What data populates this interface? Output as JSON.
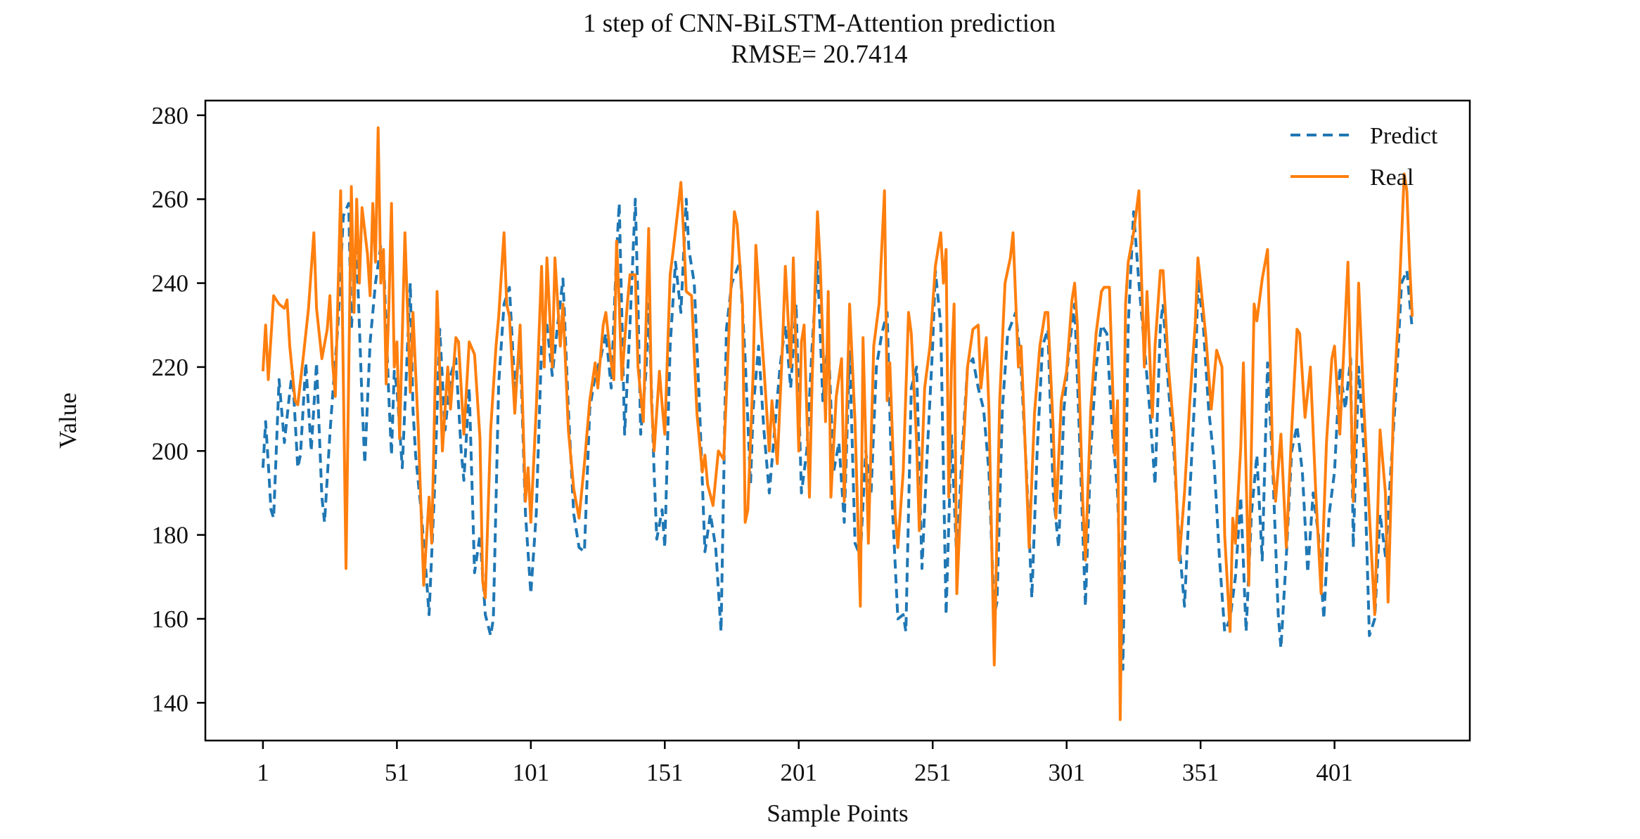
{
  "chart_data": {
    "type": "line",
    "title": "1 step of CNN-BiLSTM-Attention prediction",
    "subtitle": "RMSE= 20.7414",
    "xlabel": "Sample Points",
    "ylabel": "Value",
    "xlim": [
      -20.5,
      451.5
    ],
    "ylim": [
      131,
      283.5
    ],
    "xticks": [
      1,
      51,
      101,
      151,
      201,
      251,
      301,
      351,
      401
    ],
    "yticks": [
      140,
      160,
      180,
      200,
      220,
      240,
      260,
      280
    ],
    "grid": false,
    "legend_position": "upper right",
    "background_color": "#ffffff",
    "axes_color": "#000000",
    "series": [
      {
        "name": "Predict",
        "color": "#1f77b4",
        "style": "dashed",
        "x": [
          1,
          2,
          3,
          4,
          5,
          7,
          9,
          11,
          12,
          14,
          15,
          17,
          19,
          21,
          23,
          24,
          26,
          27,
          29,
          31,
          33,
          34,
          36,
          38,
          39,
          41,
          43,
          45,
          46,
          48,
          49,
          50,
          51,
          53,
          56,
          57,
          58,
          60,
          62,
          63,
          65,
          67,
          69,
          71,
          73,
          75,
          76,
          78,
          80,
          82,
          84,
          86,
          87,
          89,
          91,
          93,
          95,
          97,
          99,
          101,
          103,
          105,
          107,
          109,
          111,
          113,
          115,
          117,
          119,
          121,
          123,
          125,
          127,
          129,
          131,
          133,
          134,
          136,
          138,
          140,
          141,
          142,
          144,
          145,
          147,
          148,
          150,
          151,
          153,
          155,
          157,
          159,
          160,
          162,
          164,
          166,
          168,
          170,
          172,
          174,
          176,
          179,
          181,
          183,
          184,
          186,
          188,
          190,
          192,
          194,
          196,
          198,
          200,
          202,
          204,
          206,
          208,
          210,
          212,
          214,
          216,
          218,
          220,
          222,
          224,
          226,
          228,
          230,
          232,
          234,
          236,
          238,
          240,
          241,
          243,
          245,
          247,
          249,
          251,
          252,
          254,
          256,
          258,
          260,
          262,
          264,
          266,
          268,
          270,
          272,
          274,
          275,
          277,
          279,
          282,
          284,
          286,
          288,
          290,
          292,
          294,
          296,
          298,
          300,
          302,
          304,
          306,
          308,
          310,
          312,
          314,
          316,
          318,
          320,
          322,
          324,
          326,
          328,
          330,
          332,
          334,
          336,
          337,
          339,
          341,
          343,
          345,
          347,
          349,
          350,
          352,
          354,
          356,
          358,
          360,
          362,
          364,
          366,
          368,
          370,
          372,
          374,
          376,
          378,
          380,
          381,
          383,
          385,
          387,
          389,
          391,
          393,
          395,
          397,
          399,
          401,
          403,
          405,
          407,
          408,
          410,
          412,
          414,
          416,
          418,
          420,
          422,
          424,
          426,
          428,
          430
        ],
        "y": [
          196,
          207,
          197,
          186,
          184,
          217,
          202,
          214,
          219,
          196,
          199,
          221,
          200,
          221,
          189,
          183,
          204,
          213,
          230,
          256,
          259,
          229,
          248,
          212,
          197,
          226,
          240,
          249,
          246,
          213,
          199,
          219,
          215,
          196,
          240,
          210,
          199,
          186,
          170,
          161,
          190,
          229,
          205,
          218,
          222,
          200,
          193,
          215,
          171,
          180,
          161,
          156,
          160,
          216,
          235,
          239,
          215,
          225,
          185,
          166,
          185,
          225,
          230,
          218,
          230,
          241,
          210,
          185,
          177,
          176,
          210,
          218,
          222,
          228,
          215,
          247,
          259,
          204,
          230,
          260,
          235,
          204,
          219,
          235,
          195,
          179,
          186,
          177,
          225,
          245,
          233,
          260,
          248,
          240,
          210,
          176,
          185,
          177,
          157,
          229,
          240,
          245,
          222,
          192,
          210,
          225,
          205,
          190,
          205,
          220,
          230,
          215,
          235,
          190,
          200,
          225,
          245,
          212,
          227,
          195,
          202,
          183,
          224,
          178,
          175,
          200,
          190,
          220,
          228,
          233,
          186,
          160,
          161,
          157,
          215,
          220,
          172,
          200,
          225,
          243,
          230,
          161,
          204,
          174,
          200,
          220,
          222,
          215,
          210,
          195,
          161,
          164,
          210,
          228,
          233,
          220,
          195,
          165,
          200,
          225,
          229,
          190,
          177,
          210,
          225,
          235,
          200,
          163,
          200,
          220,
          230,
          228,
          205,
          190,
          148,
          230,
          257,
          240,
          225,
          210,
          192,
          230,
          235,
          215,
          200,
          178,
          163,
          190,
          215,
          241,
          230,
          210,
          198,
          175,
          157,
          160,
          170,
          189,
          157,
          185,
          199,
          174,
          221,
          195,
          161,
          153,
          175,
          200,
          206,
          195,
          171,
          190,
          180,
          160,
          185,
          195,
          220,
          210,
          222,
          177,
          220,
          200,
          156,
          160,
          185,
          175,
          195,
          215,
          240,
          243,
          229
        ]
      },
      {
        "name": "Real",
        "color": "#ff7f0e",
        "style": "solid",
        "x": [
          1,
          2,
          3,
          5,
          7,
          9,
          10,
          11,
          13,
          14,
          16,
          18,
          20,
          21,
          23,
          25,
          26,
          27,
          28,
          30,
          32,
          34,
          35,
          36,
          37,
          38,
          40,
          41,
          42,
          43,
          44,
          45,
          46,
          47,
          48,
          49,
          50,
          51,
          52,
          54,
          56,
          57,
          59,
          61,
          63,
          64,
          66,
          68,
          70,
          71,
          73,
          74,
          76,
          78,
          80,
          82,
          83,
          84,
          86,
          88,
          89,
          91,
          92,
          93,
          95,
          97,
          99,
          100,
          101,
          103,
          105,
          106,
          107,
          109,
          110,
          112,
          113,
          115,
          117,
          119,
          121,
          123,
          125,
          126,
          128,
          129,
          131,
          132,
          133,
          134,
          135,
          137,
          138,
          140,
          141,
          143,
          145,
          146,
          147,
          149,
          150,
          151,
          153,
          154,
          156,
          157,
          158,
          159,
          161,
          163,
          165,
          166,
          167,
          169,
          171,
          173,
          175,
          177,
          178,
          180,
          181,
          182,
          184,
          185,
          187,
          188,
          190,
          191,
          193,
          195,
          196,
          198,
          199,
          201,
          202,
          203,
          205,
          206,
          208,
          209,
          211,
          212,
          213,
          215,
          217,
          218,
          220,
          222,
          224,
          225,
          227,
          229,
          231,
          233,
          234,
          235,
          237,
          238,
          240,
          242,
          243,
          245,
          246,
          248,
          250,
          252,
          254,
          255,
          256,
          257,
          258,
          259,
          260,
          262,
          264,
          266,
          268,
          269,
          271,
          272,
          274,
          276,
          278,
          280,
          281,
          283,
          284,
          285,
          287,
          289,
          291,
          293,
          294,
          296,
          297,
          299,
          301,
          303,
          304,
          305,
          307,
          308,
          310,
          312,
          314,
          315,
          317,
          319,
          320,
          321,
          323,
          324,
          326,
          328,
          329,
          330,
          331,
          333,
          334,
          336,
          337,
          339,
          341,
          343,
          345,
          347,
          349,
          350,
          351,
          353,
          355,
          357,
          359,
          360,
          362,
          363,
          364,
          366,
          367,
          369,
          371,
          372,
          374,
          376,
          378,
          379,
          381,
          383,
          385,
          387,
          388,
          390,
          392,
          394,
          396,
          398,
          400,
          401,
          403,
          406,
          408,
          410,
          412,
          414,
          416,
          418,
          420,
          421,
          423,
          425,
          427,
          428,
          429,
          430
        ],
        "y": [
          219,
          230,
          217,
          237,
          235,
          234,
          236,
          225,
          212,
          211,
          222,
          234,
          252,
          234,
          222,
          229,
          237,
          221,
          213,
          262,
          172,
          263,
          233,
          260,
          240,
          258,
          247,
          237,
          259,
          245,
          277,
          240,
          248,
          216,
          234,
          259,
          220,
          226,
          203,
          252,
          214,
          233,
          205,
          168,
          189,
          178,
          238,
          200,
          220,
          210,
          227,
          226,
          204,
          226,
          223,
          203,
          169,
          165,
          205,
          225,
          232,
          252,
          235,
          232,
          209,
          230,
          188,
          196,
          183,
          210,
          244,
          220,
          246,
          220,
          246,
          225,
          235,
          205,
          191,
          184,
          197,
          212,
          221,
          215,
          230,
          233,
          221,
          217,
          250,
          235,
          217,
          235,
          242,
          242,
          220,
          207,
          253,
          212,
          200,
          219,
          211,
          204,
          242,
          247,
          258,
          264,
          252,
          238,
          237,
          209,
          195,
          199,
          192,
          187,
          200,
          198,
          229,
          257,
          254,
          235,
          183,
          186,
          219,
          249,
          229,
          220,
          200,
          212,
          197,
          226,
          244,
          220,
          246,
          200,
          226,
          230,
          189,
          217,
          257,
          245,
          207,
          238,
          189,
          213,
          222,
          188,
          235,
          207,
          163,
          227,
          178,
          225,
          235,
          262,
          212,
          221,
          185,
          177,
          195,
          233,
          228,
          202,
          181,
          215,
          225,
          244,
          252,
          240,
          248,
          189,
          220,
          235,
          166,
          195,
          220,
          229,
          230,
          215,
          227,
          210,
          149,
          212,
          240,
          246,
          252,
          220,
          225,
          210,
          177,
          209,
          225,
          233,
          233,
          205,
          184,
          212,
          219,
          236,
          240,
          230,
          188,
          174,
          210,
          228,
          238,
          239,
          239,
          199,
          212,
          136,
          235,
          245,
          252,
          262,
          240,
          220,
          238,
          208,
          225,
          243,
          243,
          220,
          205,
          174,
          190,
          212,
          230,
          246,
          240,
          227,
          210,
          224,
          220,
          180,
          157,
          184,
          178,
          201,
          221,
          168,
          235,
          231,
          241,
          248,
          196,
          188,
          204,
          177,
          205,
          229,
          228,
          208,
          220,
          190,
          166,
          202,
          222,
          225,
          204,
          245,
          188,
          240,
          210,
          185,
          161,
          205,
          190,
          164,
          210,
          235,
          266,
          262,
          245,
          232
        ]
      }
    ]
  }
}
